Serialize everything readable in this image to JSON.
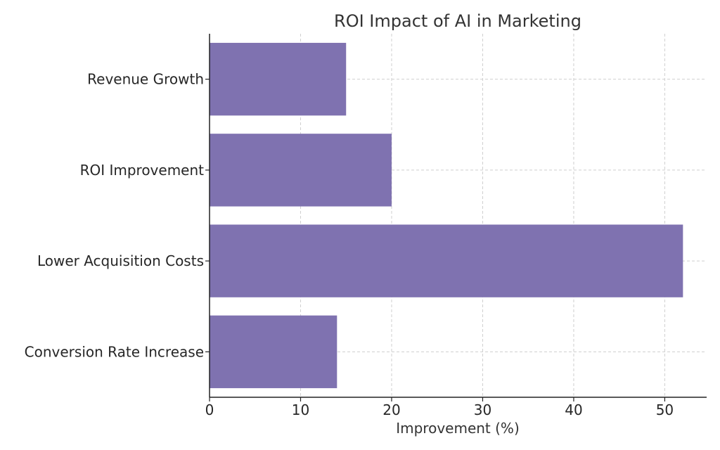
{
  "chart_data": {
    "type": "bar",
    "orientation": "horizontal",
    "title": "ROI Impact of AI in Marketing",
    "xlabel": "Improvement (%)",
    "ylabel": "",
    "categories": [
      "Revenue Growth",
      "ROI Improvement",
      "Lower Acquisition Costs",
      "Conversion Rate Increase"
    ],
    "values": [
      15,
      20,
      52,
      14
    ],
    "xlim": [
      0,
      54.6
    ],
    "xticks": [
      0,
      10,
      20,
      30,
      40,
      50
    ],
    "grid": true,
    "bar_color": "#7f72b0"
  }
}
